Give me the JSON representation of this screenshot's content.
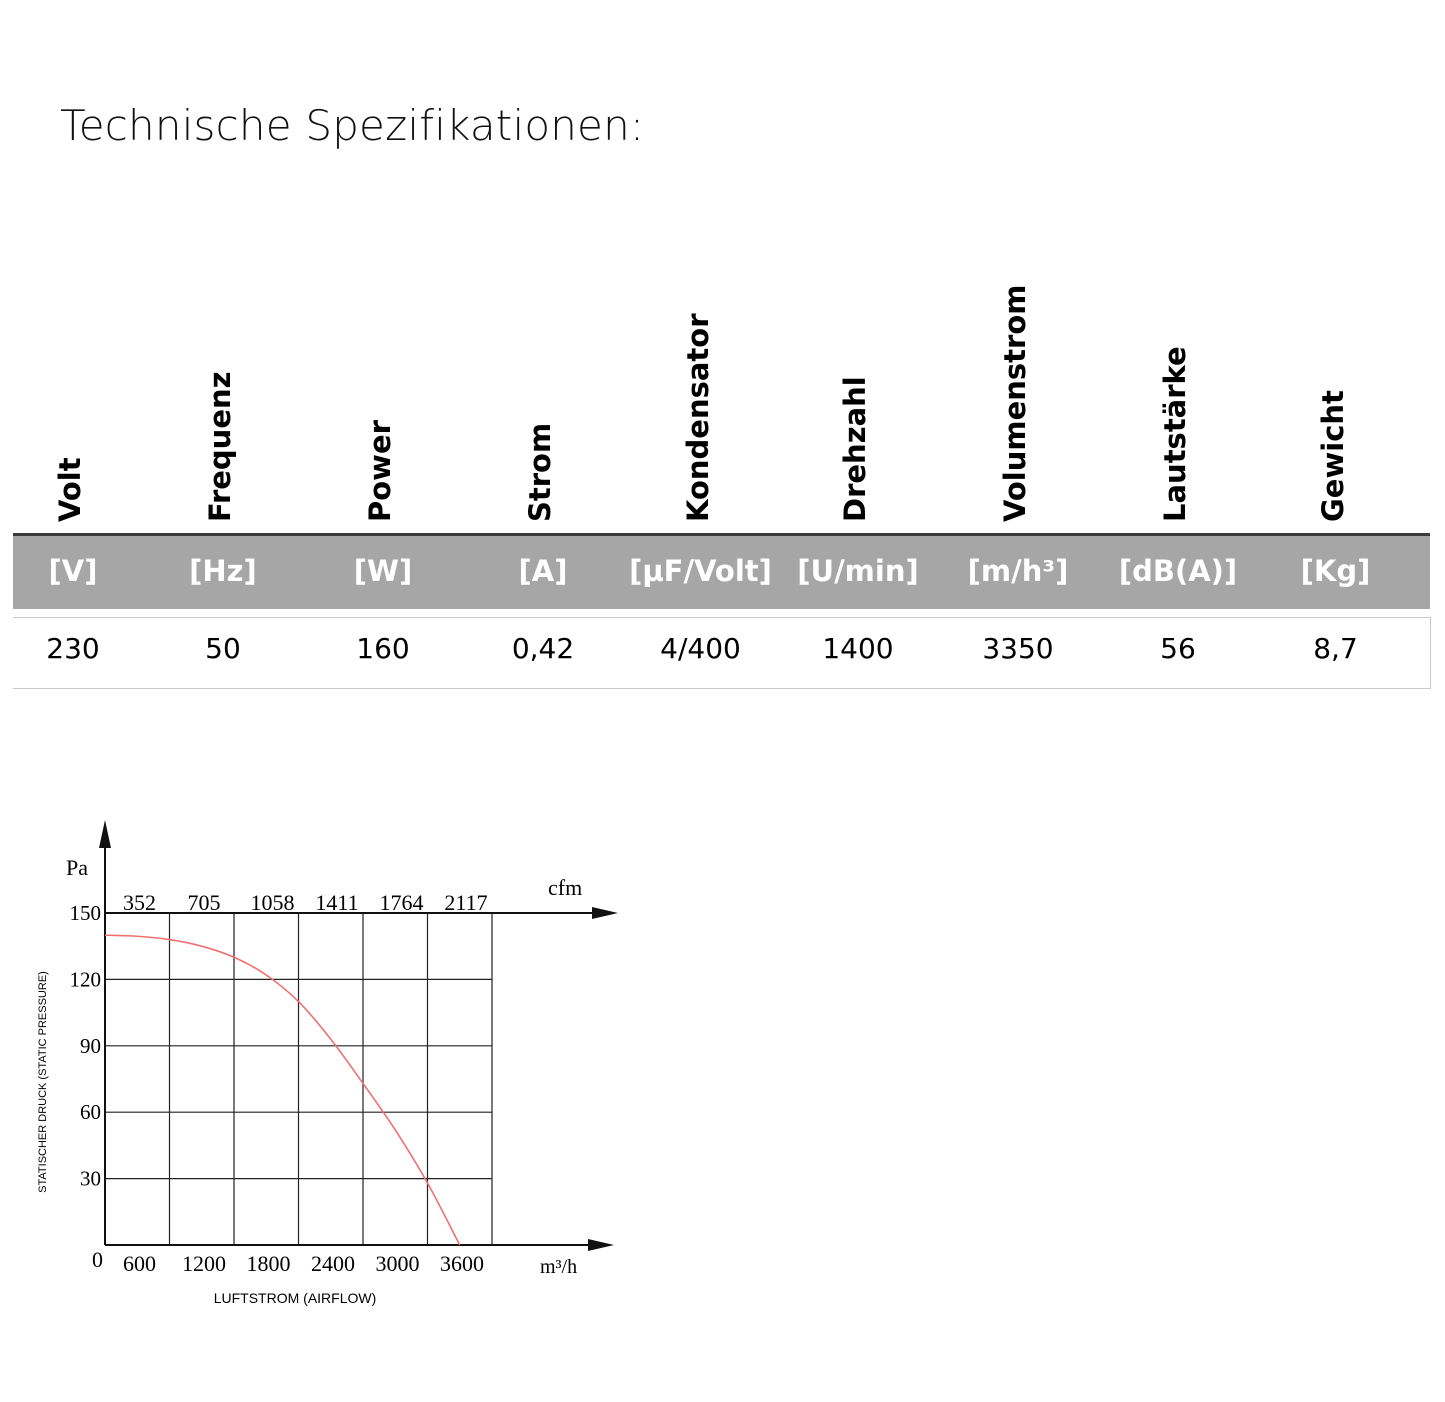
{
  "page": {
    "title": "Technische Spezifikationen:"
  },
  "spec_table": {
    "columns": [
      {
        "header": "Volt",
        "unit": "[V]",
        "value": "230"
      },
      {
        "header": "Frequenz",
        "unit": "[Hz]",
        "value": "50"
      },
      {
        "header": "Power",
        "unit": "[W]",
        "value": "160"
      },
      {
        "header": "Strom",
        "unit": "[A]",
        "value": "0,42"
      },
      {
        "header": "Kondensator",
        "unit": "[µF/Volt]",
        "value": "4/400"
      },
      {
        "header": "Drehzahl",
        "unit": "[U/min]",
        "value": "1400"
      },
      {
        "header": "Volumenstrom",
        "unit": "[m/h³]",
        "value": "3350"
      },
      {
        "header": "Lautstärke",
        "unit": "[dB(A)]",
        "value": "56"
      },
      {
        "header": "Gewicht",
        "unit": "[Kg]",
        "value": "8,7"
      }
    ]
  },
  "chart_data": {
    "type": "line",
    "title": "",
    "xlabel": "LUFTSTROM (AIRFLOW)",
    "ylabel": "STATISCHER DRUCK (STATIC PRESSURE)",
    "x_unit": "m³/h",
    "y_unit": "Pa",
    "secondary_x_unit": "cfm",
    "origin_label": "0",
    "xlim": [
      0,
      3600
    ],
    "ylim": [
      0,
      150
    ],
    "x_ticks": [
      600,
      1200,
      1800,
      2400,
      3000,
      3600
    ],
    "y_ticks": [
      30,
      60,
      90,
      120,
      150
    ],
    "secondary_x_ticks": [
      352,
      705,
      1058,
      1411,
      1764,
      2117
    ],
    "grid": true,
    "series_color": "#f07070",
    "series": [
      {
        "name": "",
        "x": [
          0,
          300,
          600,
          900,
          1200,
          1500,
          1800,
          2100,
          2400,
          2700,
          3000,
          3300
        ],
        "values": [
          140,
          139.5,
          138,
          135,
          130,
          122,
          110,
          93,
          73,
          52,
          28,
          0
        ]
      }
    ]
  }
}
